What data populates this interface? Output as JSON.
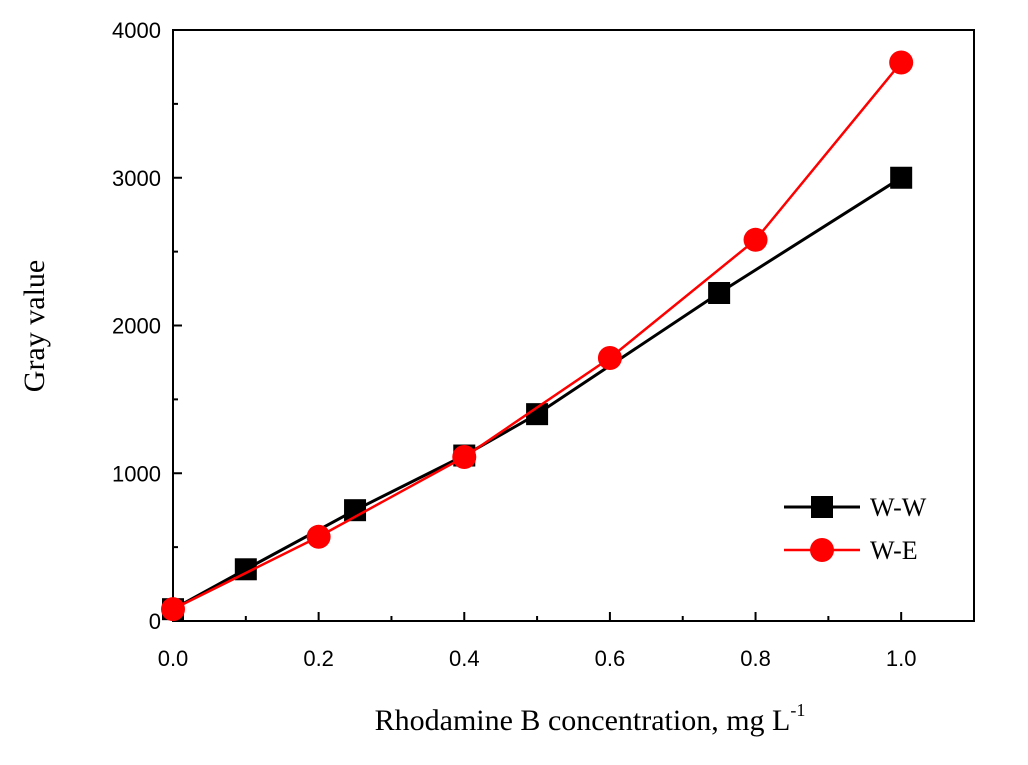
{
  "chart_data": {
    "type": "line",
    "title": "",
    "xlabel": "Rhodamine B concentration, mg L",
    "xlabel_superscript": "-1",
    "ylabel": "Gray value",
    "xlim": [
      0.0,
      1.1
    ],
    "ylim": [
      0,
      4000
    ],
    "xticks": [
      "0.0",
      "0.2",
      "0.4",
      "0.6",
      "0.8",
      "1.0"
    ],
    "yticks": [
      "0",
      "1000",
      "2000",
      "3000",
      "4000"
    ],
    "grid": false,
    "legend_position": "bottom-right",
    "series": [
      {
        "name": "W-W",
        "marker": "square",
        "color": "#000000",
        "x": [
          0.0,
          0.1,
          0.25,
          0.4,
          0.5,
          0.75,
          1.0
        ],
        "y": [
          80,
          350,
          750,
          1120,
          1400,
          2220,
          3000
        ]
      },
      {
        "name": "W-E",
        "marker": "circle",
        "color": "#ff0000",
        "x": [
          0.0,
          0.2,
          0.4,
          0.6,
          0.8,
          1.0
        ],
        "y": [
          80,
          570,
          1110,
          1780,
          2580,
          3780
        ]
      }
    ]
  }
}
